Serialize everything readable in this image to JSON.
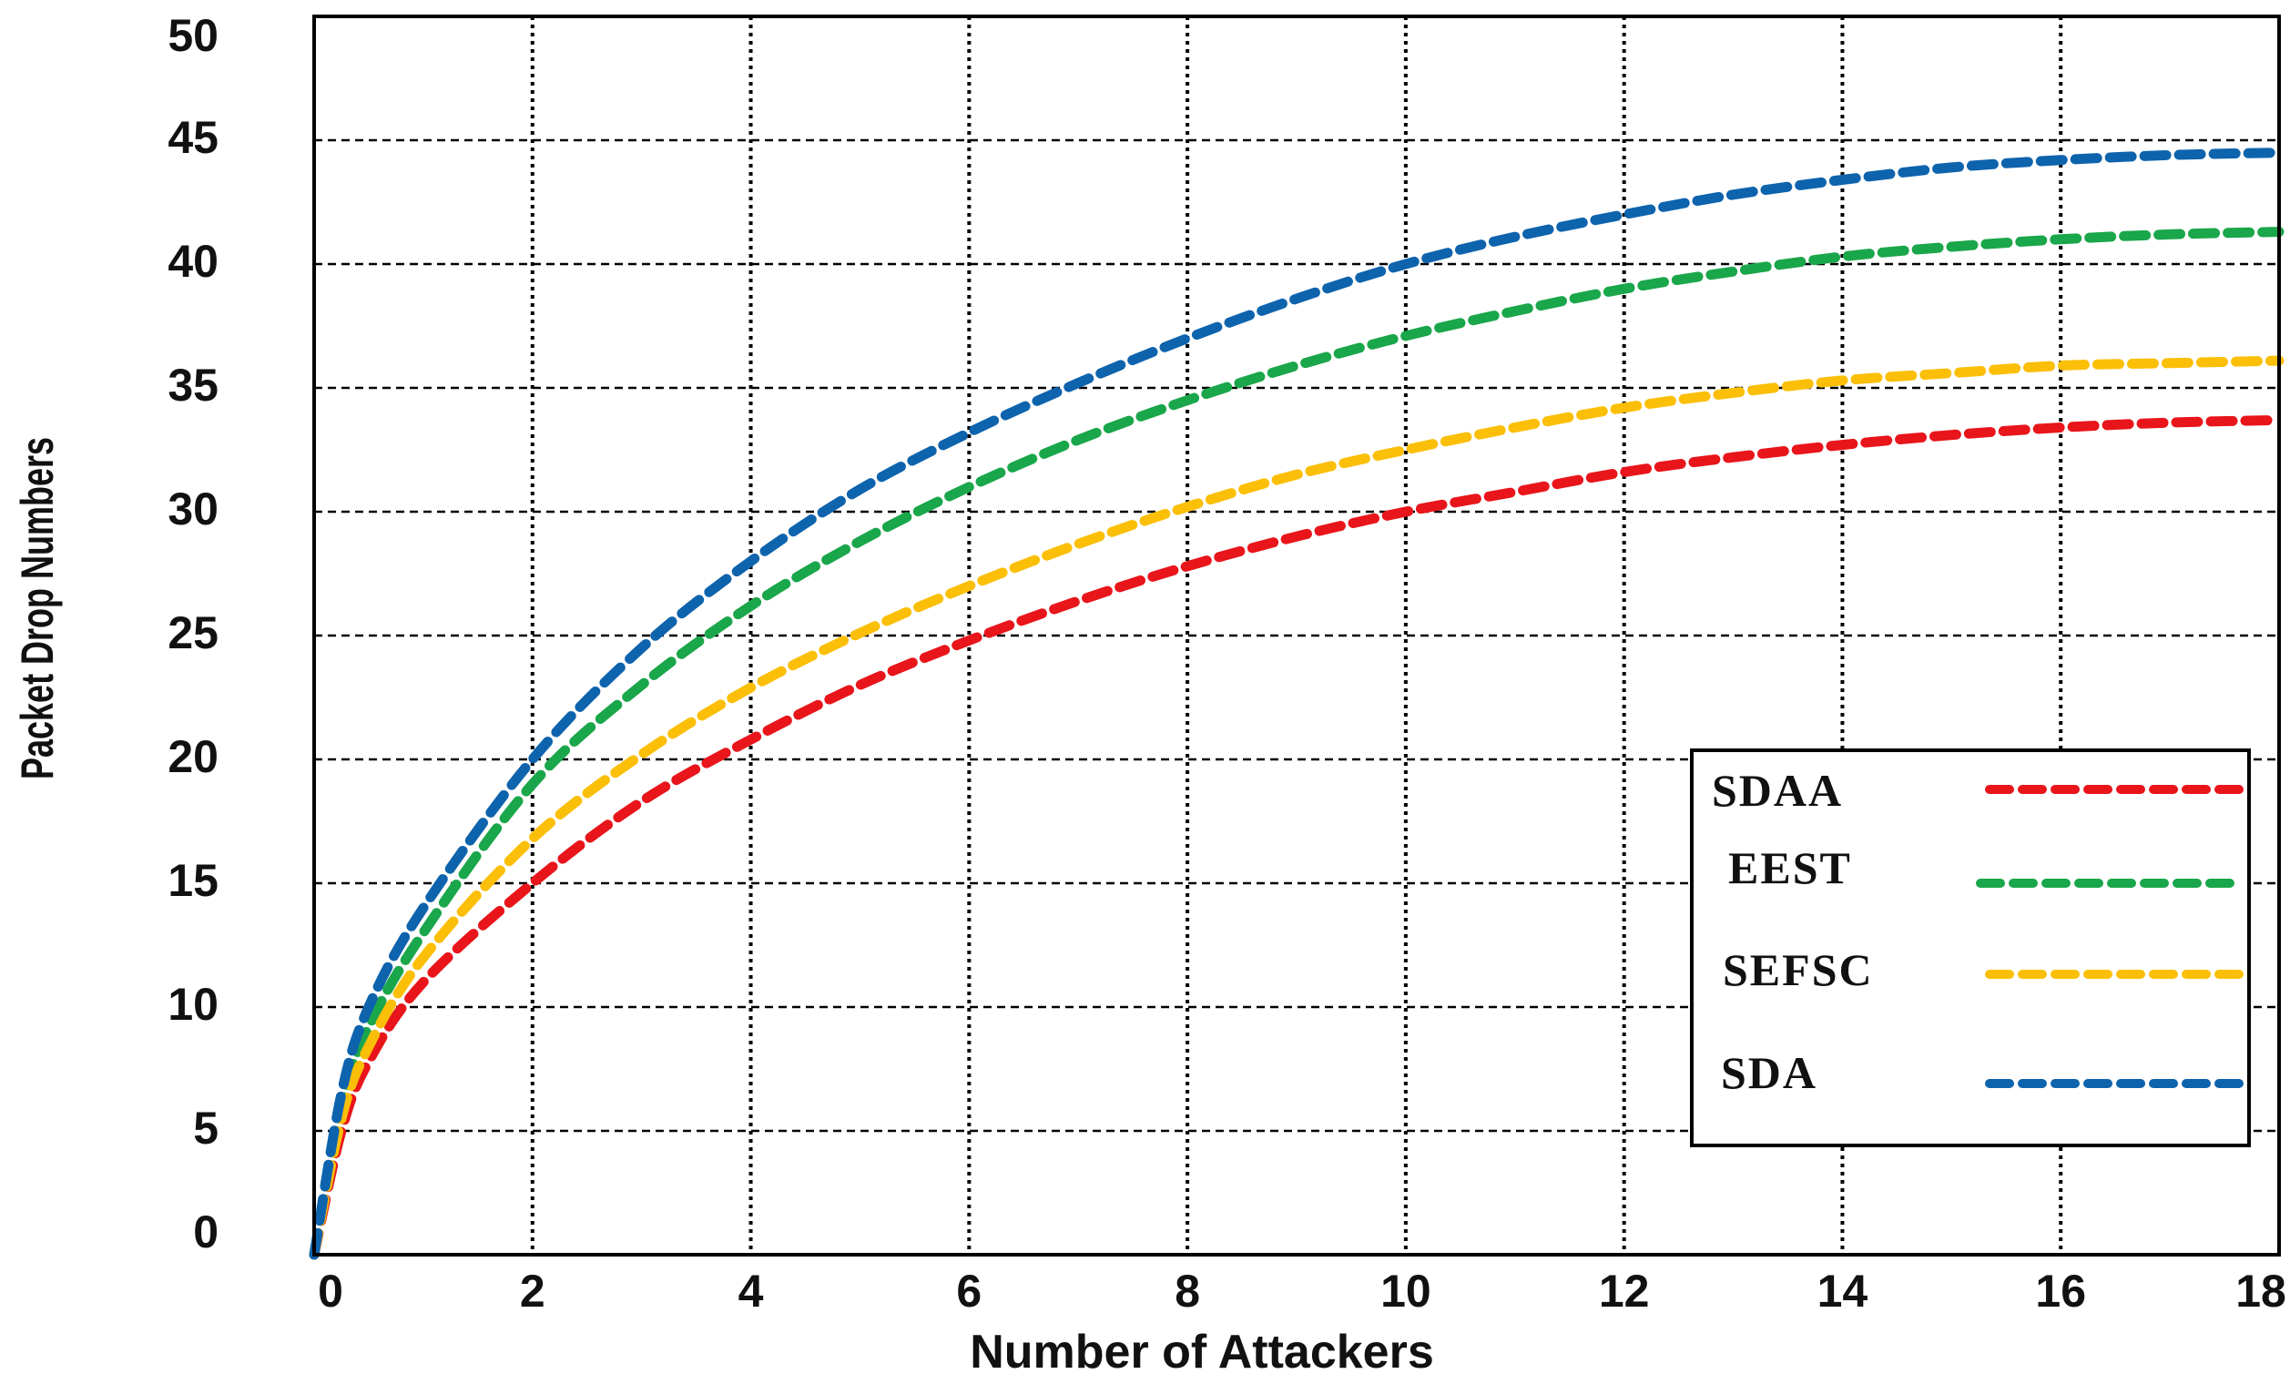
{
  "chart_data": {
    "type": "line",
    "title": "",
    "xlabel": "Number of Attackers",
    "ylabel": "Packet Drop Numbers",
    "xlim": [
      0,
      18
    ],
    "ylim": [
      0,
      50
    ],
    "xticks": [
      "0",
      "2",
      "4",
      "6",
      "8",
      "10",
      "12",
      "14",
      "16",
      "18"
    ],
    "yticks": [
      "0",
      "5",
      "10",
      "15",
      "20",
      "25",
      "30",
      "35",
      "40",
      "45",
      "50"
    ],
    "grid": true,
    "legend_position": "lower-right",
    "x": [
      0,
      0.25,
      0.5,
      1,
      2,
      3,
      4,
      5,
      6,
      7,
      8,
      9,
      10,
      11,
      12,
      13,
      14,
      15,
      16,
      17,
      18
    ],
    "series": [
      {
        "name": "SDAA",
        "color": "#e8151b",
        "values": [
          0,
          5,
          7.8,
          11,
          15,
          18.3,
          20.8,
          23,
          24.8,
          26.4,
          27.8,
          29,
          30,
          30.8,
          31.6,
          32.2,
          32.7,
          33.1,
          33.4,
          33.6,
          33.7
        ]
      },
      {
        "name": "EEST",
        "color": "#1aa64a",
        "values": [
          0,
          6,
          9.2,
          13,
          19,
          23,
          26.2,
          28.8,
          31,
          32.9,
          34.5,
          35.9,
          37.1,
          38.1,
          39,
          39.7,
          40.3,
          40.7,
          41,
          41.2,
          41.3
        ]
      },
      {
        "name": "SEFSC",
        "color": "#fbbf08",
        "values": [
          0,
          5.5,
          8.4,
          12,
          16.8,
          20.2,
          22.9,
          25.1,
          27,
          28.7,
          30.2,
          31.5,
          32.5,
          33.4,
          34.2,
          34.8,
          35.3,
          35.6,
          35.9,
          36,
          36.1
        ]
      },
      {
        "name": "SDA",
        "color": "#0e63ad",
        "values": [
          0,
          6.5,
          10,
          14,
          20,
          24.5,
          28,
          30.9,
          33.2,
          35.2,
          37,
          38.6,
          40,
          41.1,
          42,
          42.8,
          43.4,
          43.9,
          44.2,
          44.4,
          44.5
        ]
      }
    ]
  }
}
